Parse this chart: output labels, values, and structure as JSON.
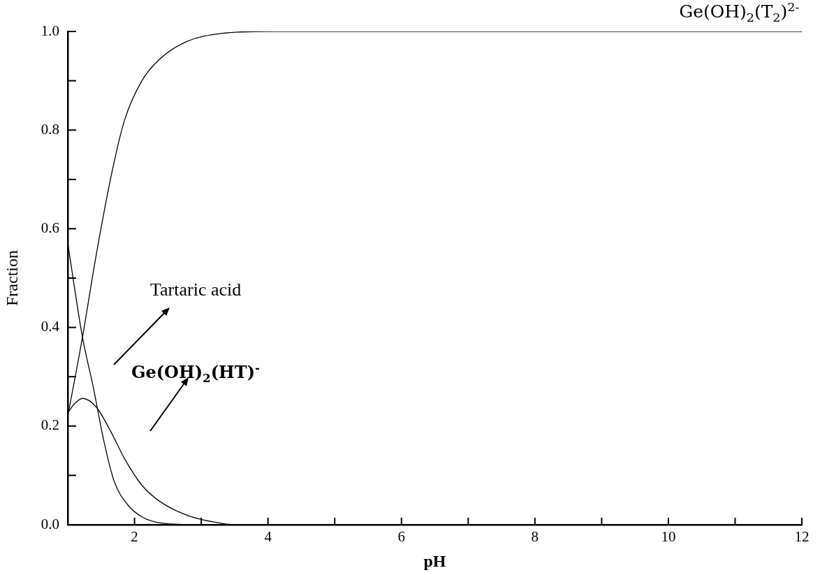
{
  "chart_data": {
    "type": "line",
    "xlabel": "pH",
    "ylabel": "Fraction",
    "xlim": [
      1,
      12
    ],
    "xticks": [
      {
        "value": 2,
        "label": "2"
      },
      {
        "value": 3,
        "label": null
      },
      {
        "value": 4,
        "label": "4"
      },
      {
        "value": 5,
        "label": null
      },
      {
        "value": 6,
        "label": "6"
      },
      {
        "value": 7,
        "label": null
      },
      {
        "value": 8,
        "label": "8"
      },
      {
        "value": 9,
        "label": null
      },
      {
        "value": 10,
        "label": "10"
      },
      {
        "value": 11,
        "label": null
      },
      {
        "value": 12,
        "label": "12"
      }
    ],
    "ylim": [
      0,
      1
    ],
    "yticks": [
      {
        "value": 0,
        "label": "0.0"
      },
      {
        "value": 0.1,
        "label": null
      },
      {
        "value": 0.2,
        "label": "0.2"
      },
      {
        "value": 0.3,
        "label": null
      },
      {
        "value": 0.4,
        "label": "0.4"
      },
      {
        "value": 0.5,
        "label": null
      },
      {
        "value": 0.6,
        "label": "0.6"
      },
      {
        "value": 0.7,
        "label": null
      },
      {
        "value": 0.8,
        "label": "0.8"
      },
      {
        "value": 0.9,
        "label": null
      },
      {
        "value": 1,
        "label": "1.0"
      }
    ],
    "grid": false,
    "legend": false,
    "marker": "none",
    "line_style": "solid",
    "series": [
      {
        "color": "#000000",
        "x": [
          1,
          1.22,
          1.43,
          1.67,
          1.85,
          2.11,
          2.37,
          2.79,
          3.3,
          4,
          6,
          8,
          10,
          12
        ],
        "values": [
          0.22,
          0.38,
          0.55,
          0.72,
          0.82,
          0.9,
          0.943,
          0.98,
          0.996,
          1,
          1,
          1,
          1,
          1
        ]
      },
      {
        "color": "#000000",
        "x": [
          1,
          1.22,
          1.38,
          1.54,
          1.69,
          1.9,
          2.11,
          2.42,
          3,
          4,
          12
        ],
        "values": [
          0.57,
          0.38,
          0.28,
          0.17,
          0.09,
          0.04,
          0.016,
          0.003,
          0,
          0,
          0
        ]
      },
      {
        "color": "#000000",
        "x": [
          1,
          1.1,
          1.22,
          1.43,
          1.64,
          1.85,
          2.11,
          2.37,
          2.79,
          3.2,
          3.5,
          4,
          12
        ],
        "values": [
          0.227,
          0.245,
          0.256,
          0.238,
          0.19,
          0.134,
          0.08,
          0.048,
          0.019,
          0.005,
          0,
          0,
          0
        ]
      }
    ],
    "annotations": [
      {
        "text": "Ge(OH)$_{2}$(T$_{2}$)$^{2-}$",
        "x": 11.06,
        "y": 1
      },
      "Tartaric acid",
      "Ge(OH)$_{2}$(HT)$^{-}$"
    ]
  }
}
